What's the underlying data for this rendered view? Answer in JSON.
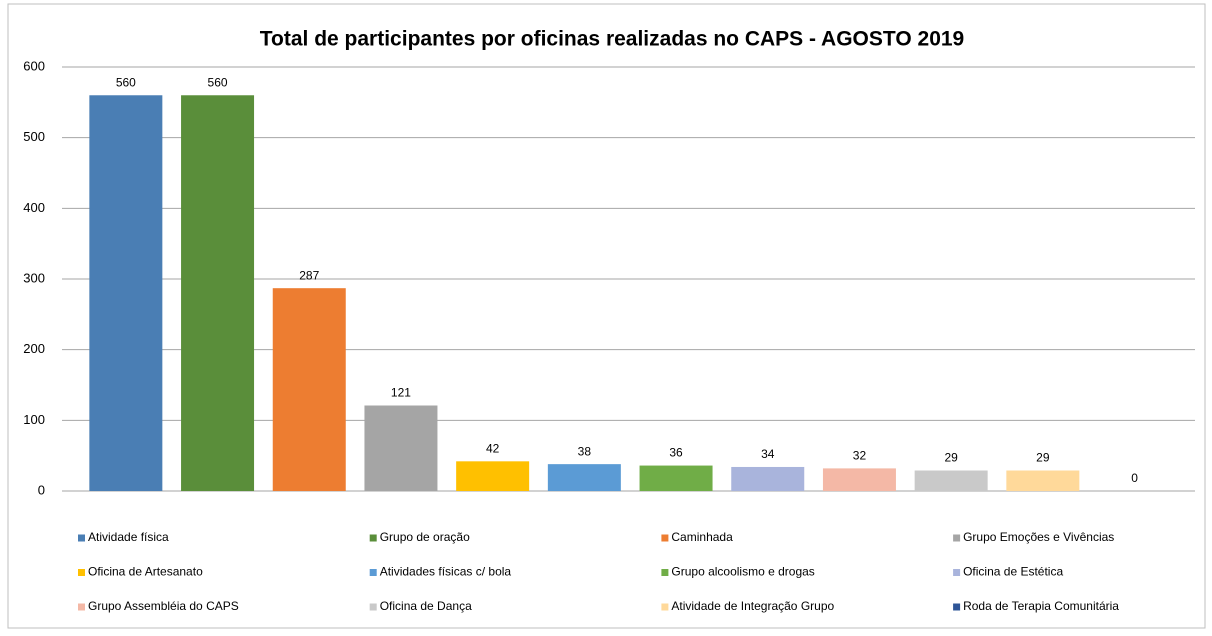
{
  "chart_data": {
    "type": "bar",
    "title": "Total de participantes por oficinas realizadas no CAPS - AGOSTO 2019",
    "categories": [
      "Atividade física",
      "Grupo de oração",
      "Caminhada",
      "Grupo Emoções e Vivências",
      "Oficina de Artesanato",
      "Atividades físicas c/ bola",
      "Grupo alcoolismo e drogas",
      "Oficina de Estética",
      "Grupo Assembléia do CAPS",
      "Oficina de Dança",
      "Atividade de Integração Grupo",
      "Roda de Terapia Comunitária"
    ],
    "values": [
      560,
      560,
      287,
      121,
      42,
      38,
      36,
      34,
      32,
      29,
      29,
      0
    ],
    "colors": [
      "#4a7eb4",
      "#5a8e3a",
      "#ed7d31",
      "#a5a5a5",
      "#ffc000",
      "#5b9bd5",
      "#70ad47",
      "#a9b4dc",
      "#f4b8a6",
      "#c9c9c9",
      "#ffd99a",
      "#2e5597"
    ],
    "ylim": [
      0,
      600
    ],
    "yticks": [
      0,
      100,
      200,
      300,
      400,
      500,
      600
    ],
    "grid": true
  }
}
